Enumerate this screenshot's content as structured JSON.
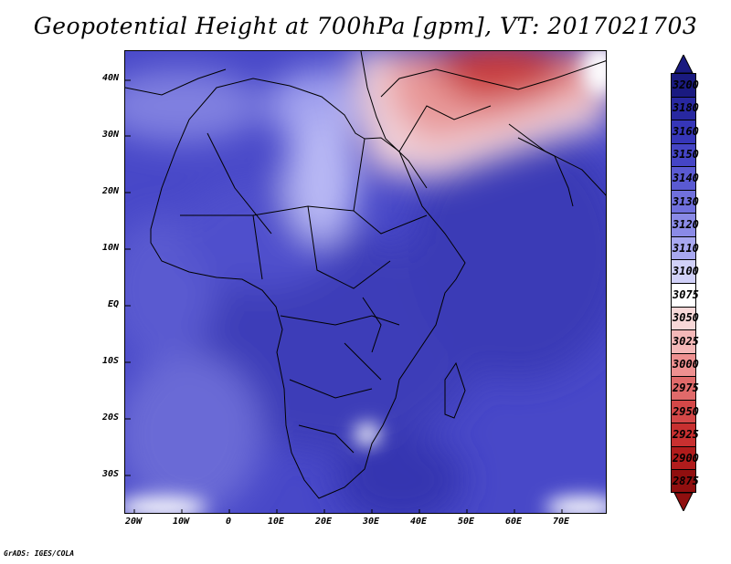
{
  "title": "Geopotential Height at 700hPa [gpm], VT: 2017021703",
  "credit": "GrADS: IGES/COLA",
  "map": {
    "lat_labels": [
      "40N",
      "30N",
      "20N",
      "10N",
      "EQ",
      "10S",
      "20S",
      "30S"
    ],
    "lon_labels": [
      "20W",
      "10W",
      "0",
      "10E",
      "20E",
      "30E",
      "40E",
      "50E",
      "60E",
      "70E"
    ]
  },
  "colorbar": {
    "levels": [
      "3200",
      "3180",
      "3160",
      "3150",
      "3140",
      "3130",
      "3120",
      "3110",
      "3100",
      "3075",
      "3050",
      "3025",
      "3000",
      "2975",
      "2950",
      "2925",
      "2900",
      "2875"
    ],
    "colors": [
      "#1a1a80",
      "#2828a0",
      "#3636b8",
      "#4545c5",
      "#5a5ad2",
      "#7070dc",
      "#8a8ae6",
      "#a8a8f0",
      "#d0d0f8",
      "#ffffff",
      "#f8d8d8",
      "#f4b8b8",
      "#ee9090",
      "#e06a6a",
      "#d44848",
      "#c83030",
      "#b01c1c",
      "#900f0f"
    ]
  }
}
